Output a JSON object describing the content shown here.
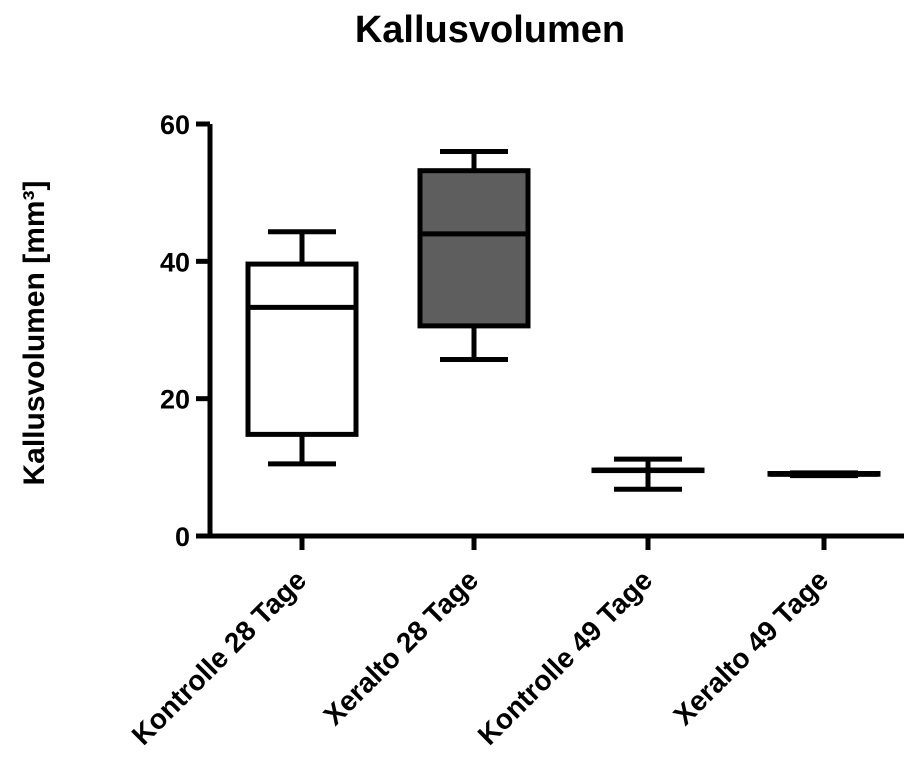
{
  "chart_data": {
    "type": "box",
    "title": "Kallusvolumen",
    "xlabel": "",
    "ylabel": "Kallusvolumen [mm³]",
    "ylim": [
      0,
      60
    ],
    "yticks": [
      0,
      20,
      40,
      60
    ],
    "grid": false,
    "categories": [
      "Kontrolle 28 Tage",
      "Xeralto 28 Tage",
      "Kontrolle 49 Tage",
      "Xeralto 49 Tage"
    ],
    "boxes": [
      {
        "min": 10.5,
        "q1": 14.8,
        "median": 33.3,
        "q3": 39.6,
        "max": 44.3,
        "fill": "#ffffff"
      },
      {
        "min": 25.7,
        "q1": 30.6,
        "median": 44.0,
        "q3": 53.2,
        "max": 56.0,
        "fill": "#5e5e5e"
      },
      {
        "min": 6.8,
        "q1": 9.6,
        "median": 9.6,
        "q3": 9.6,
        "max": 11.2,
        "fill": "#ffffff"
      },
      {
        "min": 8.8,
        "q1": 9.0,
        "median": 9.0,
        "q3": 9.1,
        "max": 9.2,
        "fill": "#ffffff"
      }
    ]
  }
}
